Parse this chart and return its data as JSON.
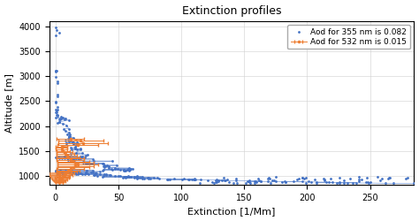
{
  "title": "Extinction profiles",
  "xlabel": "Extinction [1/Mm]",
  "ylabel": "Altitude [m]",
  "xlim": [
    -5,
    285
  ],
  "ylim": [
    820,
    4100
  ],
  "legend_labels": [
    "Aod for 355 nm is 0.082",
    "Aod for 532 nm is 0.015"
  ],
  "colors": [
    "#4472c4",
    "#ed7d31"
  ],
  "background_color": "#ffffff",
  "title_fontsize": 9,
  "label_fontsize": 8,
  "tick_fontsize": 7,
  "xticks": [
    0,
    50,
    100,
    150,
    200,
    250
  ],
  "yticks": [
    1000,
    1500,
    2000,
    2500,
    3000,
    3500,
    4000
  ]
}
